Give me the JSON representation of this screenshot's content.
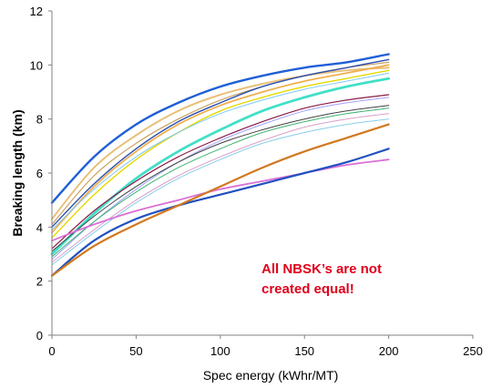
{
  "chart_data": {
    "type": "line",
    "xlabel": "Spec energy (kWhr/MT)",
    "ylabel": "Breaking length (km)",
    "xlim": [
      0,
      250
    ],
    "ylim": [
      0,
      12
    ],
    "xticks": [
      0,
      50,
      100,
      150,
      200,
      250
    ],
    "yticks": [
      0,
      2,
      4,
      6,
      8,
      10,
      12
    ],
    "grid": false,
    "legend": "none",
    "annotation": [
      "All NBSK’s are not",
      "created equal!"
    ],
    "x": [
      0,
      25,
      50,
      75,
      100,
      125,
      150,
      175,
      200
    ],
    "series": [
      {
        "color": "#1f5fd6",
        "width": 2.4,
        "values": [
          4.9,
          6.6,
          7.8,
          8.6,
          9.2,
          9.6,
          9.9,
          10.1,
          10.4
        ]
      },
      {
        "color": "#e8c07a",
        "width": 2.0,
        "values": [
          4.3,
          6.2,
          7.4,
          8.3,
          8.9,
          9.3,
          9.6,
          9.8,
          9.9
        ]
      },
      {
        "color": "#c8a060",
        "width": 1.2,
        "values": [
          4.1,
          5.9,
          7.1,
          8.0,
          8.7,
          9.2,
          9.6,
          9.9,
          10.1
        ]
      },
      {
        "color": "#2a4fb0",
        "width": 1.4,
        "values": [
          4.0,
          5.6,
          6.9,
          7.9,
          8.6,
          9.2,
          9.6,
          9.9,
          10.2
        ]
      },
      {
        "color": "#f0b050",
        "width": 1.8,
        "values": [
          3.8,
          5.5,
          6.8,
          7.8,
          8.5,
          9.0,
          9.4,
          9.7,
          10.0
        ]
      },
      {
        "color": "#e6d800",
        "width": 1.4,
        "values": [
          3.6,
          5.2,
          6.5,
          7.5,
          8.3,
          8.8,
          9.2,
          9.5,
          9.8
        ]
      },
      {
        "color": "#7fc8ff",
        "width": 1.0,
        "values": [
          3.9,
          5.4,
          6.6,
          7.5,
          8.2,
          8.7,
          9.1,
          9.4,
          9.7
        ]
      },
      {
        "color": "#40e0c8",
        "width": 2.8,
        "values": [
          3.0,
          4.5,
          5.8,
          6.8,
          7.6,
          8.3,
          8.8,
          9.2,
          9.5
        ]
      },
      {
        "color": "#8b1a4a",
        "width": 1.2,
        "values": [
          3.2,
          4.6,
          5.7,
          6.6,
          7.3,
          7.9,
          8.4,
          8.7,
          8.9
        ]
      },
      {
        "color": "#a0a0ff",
        "width": 1.0,
        "values": [
          2.8,
          4.2,
          5.4,
          6.4,
          7.2,
          7.8,
          8.3,
          8.6,
          8.8
        ]
      },
      {
        "color": "#404040",
        "width": 1.0,
        "values": [
          3.1,
          4.4,
          5.5,
          6.4,
          7.1,
          7.6,
          8.0,
          8.3,
          8.5
        ]
      },
      {
        "color": "#3cb371",
        "width": 1.0,
        "values": [
          2.9,
          4.2,
          5.3,
          6.2,
          6.9,
          7.5,
          7.9,
          8.2,
          8.4
        ]
      },
      {
        "color": "#d7a0c8",
        "width": 1.0,
        "values": [
          2.7,
          3.9,
          5.0,
          5.9,
          6.6,
          7.2,
          7.7,
          8.0,
          8.2
        ]
      },
      {
        "color": "#87ceeb",
        "width": 1.0,
        "values": [
          2.6,
          3.8,
          4.9,
          5.8,
          6.5,
          7.1,
          7.5,
          7.8,
          8.0
        ]
      },
      {
        "color": "#da70d6",
        "width": 1.8,
        "values": [
          3.5,
          4.1,
          4.6,
          5.0,
          5.4,
          5.7,
          6.0,
          6.3,
          6.5
        ]
      },
      {
        "color": "#2050c0",
        "width": 2.2,
        "values": [
          2.2,
          3.5,
          4.3,
          4.8,
          5.2,
          5.6,
          6.0,
          6.4,
          6.9
        ]
      },
      {
        "color": "#d2781e",
        "width": 2.2,
        "values": [
          2.2,
          3.3,
          4.1,
          4.8,
          5.5,
          6.2,
          6.8,
          7.3,
          7.8
        ]
      }
    ]
  }
}
